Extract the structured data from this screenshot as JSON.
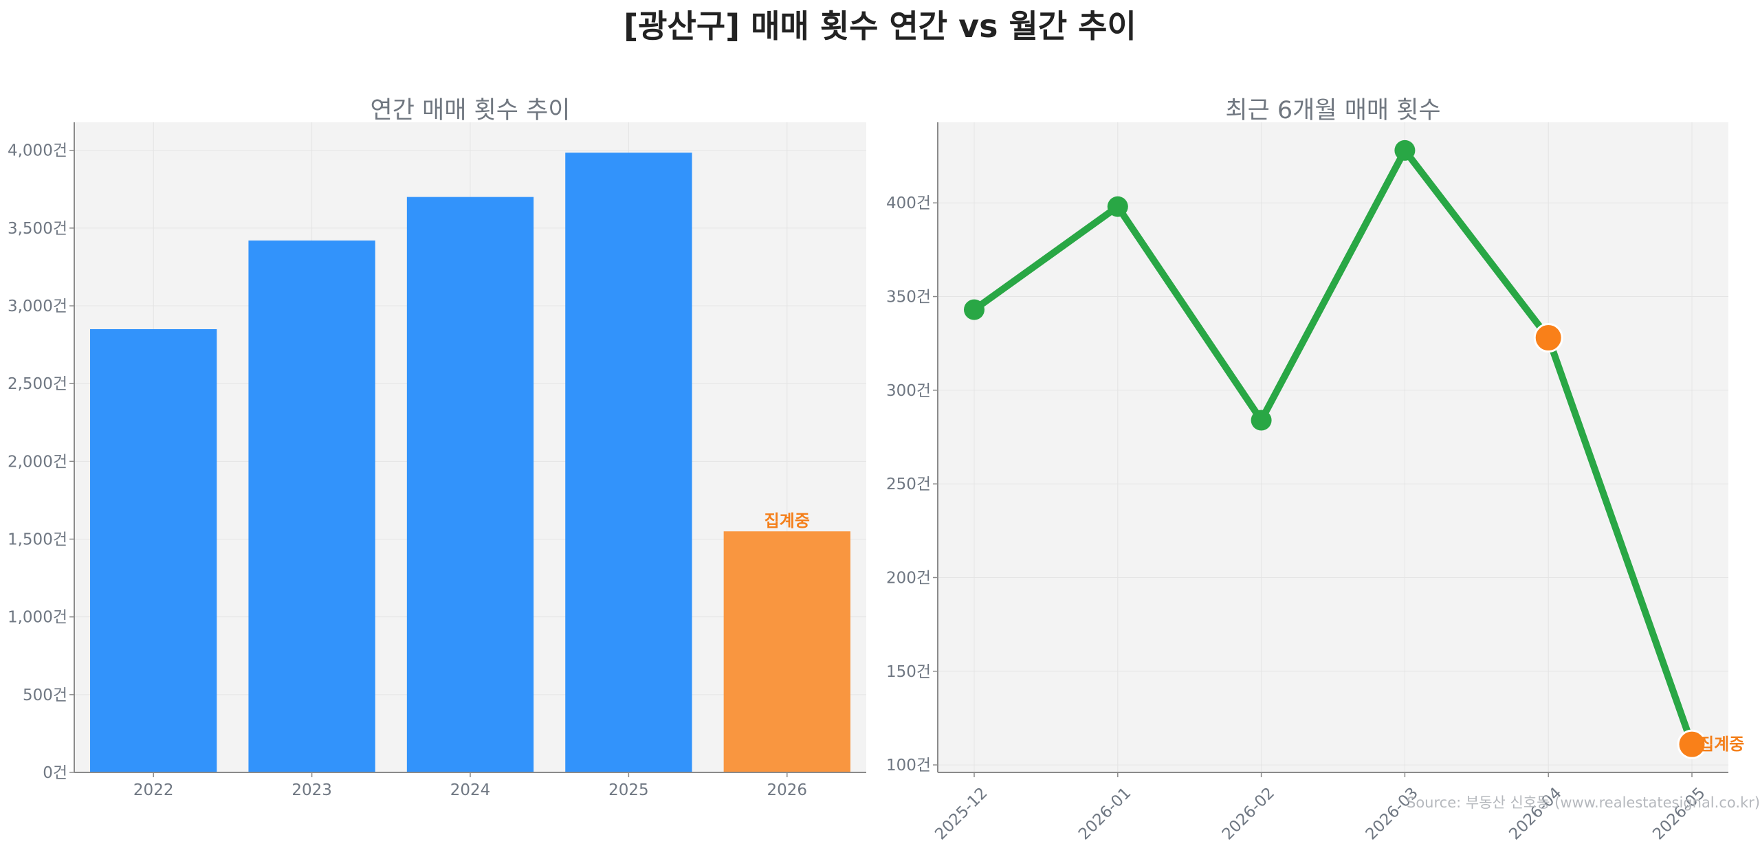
{
  "title": "[광산구] 매매 횟수 연간 vs 월간 추이",
  "source_note": "Source: 부동산 신호등 (www.realestatesignal.co.kr)",
  "colors": {
    "bar": "#3293fb",
    "bar_partial": "#f99640",
    "line": "#29a745",
    "marker_partial": "#f98019",
    "flag_text": "#f47f1a",
    "panel_bg": "#f3f3f3"
  },
  "chart_data": [
    {
      "type": "bar",
      "title": "연간 매매 횟수 추이",
      "categories": [
        "2022",
        "2023",
        "2024",
        "2025",
        "2026"
      ],
      "values": [
        2850,
        3420,
        3700,
        3985,
        1550
      ],
      "partial_flags": [
        false,
        false,
        false,
        false,
        true
      ],
      "annotation": "집계중",
      "ylim": [
        0,
        4180
      ],
      "yticks": [
        0,
        500,
        1000,
        1500,
        2000,
        2500,
        3000,
        3500,
        4000
      ],
      "ytick_labels": [
        "0건",
        "500건",
        "1,000건",
        "1,500건",
        "2,000건",
        "2,500건",
        "3,000건",
        "3,500건",
        "4,000건"
      ],
      "grid": true
    },
    {
      "type": "line",
      "title": "최근 6개월 매매 횟수",
      "x": [
        "2025-12",
        "2026-01",
        "2026-02",
        "2026-03",
        "2026-04",
        "2026-05"
      ],
      "values": [
        343,
        398,
        284,
        428,
        328,
        111
      ],
      "partial_flags": [
        false,
        false,
        false,
        false,
        true,
        true
      ],
      "annotation": "집계중",
      "ylim": [
        96,
        443
      ],
      "yticks": [
        100,
        150,
        200,
        250,
        300,
        350,
        400
      ],
      "ytick_labels": [
        "100건",
        "150건",
        "200건",
        "250건",
        "300건",
        "350건",
        "400건"
      ],
      "grid": true
    }
  ]
}
